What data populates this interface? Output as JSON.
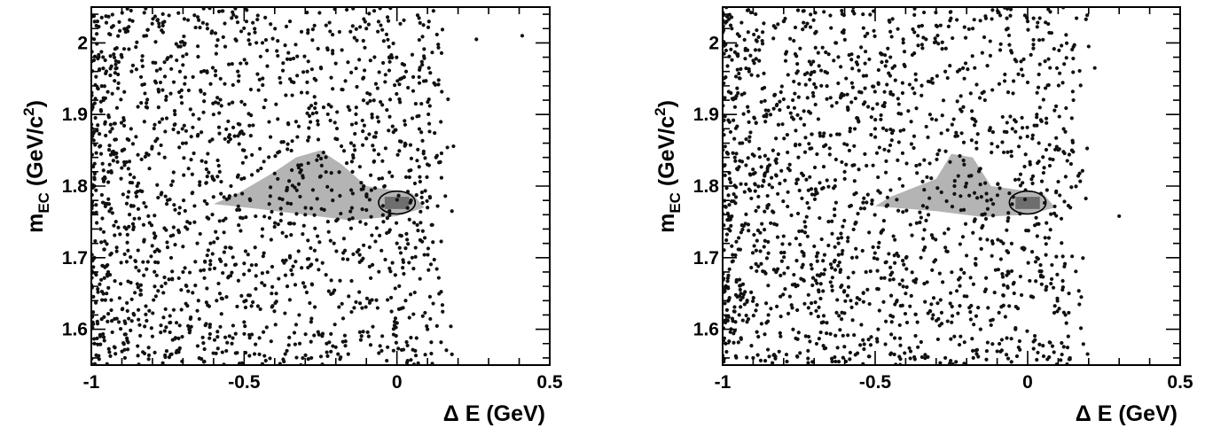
{
  "chart_data": [
    {
      "type": "scatter",
      "xlabel": "Δ E (GeV)",
      "ylabel": "m_EC (GeV/c^2)",
      "xlim": [
        -1,
        0.5
      ],
      "ylim": [
        1.55,
        2.05
      ],
      "x_tick_labels": [
        "-1",
        "-0.5",
        "0",
        "0.5"
      ],
      "y_tick_labels": [
        "1.6",
        "1.7",
        "1.8",
        "1.9",
        "2"
      ],
      "grid": false,
      "marker_color": "#111111",
      "band_color_light": "#b4b4b4",
      "band_color_dark": "#6e6e6e",
      "signal_ellipse": {
        "center": [
          0.0,
          1.777
        ],
        "semi_axes": [
          0.06,
          0.016
        ]
      },
      "points": [
        [
          -0.98,
          2.03
        ],
        [
          -0.9,
          1.98
        ],
        [
          -0.82,
          2.01
        ],
        [
          -0.71,
          1.96
        ],
        [
          -0.62,
          2.02
        ],
        [
          -0.55,
          1.97
        ],
        [
          -0.44,
          2.0
        ],
        [
          -0.35,
          2.03
        ],
        [
          -0.27,
          1.95
        ],
        [
          -0.18,
          1.99
        ],
        [
          -0.1,
          2.02
        ],
        [
          -0.02,
          1.98
        ],
        [
          0.03,
          1.96
        ],
        [
          0.26,
          2.005
        ],
        [
          0.41,
          2.01
        ],
        [
          -0.96,
          1.92
        ],
        [
          -0.87,
          1.88
        ],
        [
          -0.78,
          1.91
        ],
        [
          -0.69,
          1.86
        ],
        [
          -0.6,
          1.9
        ],
        [
          -0.52,
          1.87
        ],
        [
          -0.43,
          1.92
        ],
        [
          -0.33,
          1.89
        ],
        [
          -0.24,
          1.91
        ],
        [
          -0.15,
          1.86
        ],
        [
          -0.06,
          1.89
        ],
        [
          0.08,
          1.915
        ],
        [
          -0.94,
          1.83
        ],
        [
          -0.85,
          1.8
        ],
        [
          -0.76,
          1.84
        ],
        [
          -0.67,
          1.79
        ],
        [
          -0.58,
          1.82
        ],
        [
          -0.48,
          1.78
        ],
        [
          -0.39,
          1.81
        ],
        [
          -0.3,
          1.76
        ],
        [
          -0.21,
          1.78
        ],
        [
          -0.12,
          1.75
        ],
        [
          -0.04,
          1.8
        ],
        [
          0.1,
          1.77
        ],
        [
          0.18,
          1.765
        ],
        [
          -0.97,
          1.74
        ],
        [
          -0.88,
          1.71
        ],
        [
          -0.79,
          1.73
        ],
        [
          -0.7,
          1.68
        ],
        [
          -0.61,
          1.72
        ],
        [
          -0.53,
          1.69
        ],
        [
          -0.44,
          1.74
        ],
        [
          -0.35,
          1.7
        ],
        [
          -0.26,
          1.73
        ],
        [
          -0.17,
          1.71
        ],
        [
          -0.08,
          1.69
        ],
        [
          0.0,
          1.72
        ],
        [
          -0.95,
          1.65
        ],
        [
          -0.86,
          1.62
        ],
        [
          -0.77,
          1.66
        ],
        [
          -0.68,
          1.6
        ],
        [
          -0.59,
          1.64
        ],
        [
          -0.5,
          1.61
        ],
        [
          -0.41,
          1.65
        ],
        [
          -0.32,
          1.62
        ],
        [
          -0.23,
          1.58
        ],
        [
          -0.14,
          1.63
        ],
        [
          -0.05,
          1.57
        ],
        [
          0.02,
          1.63
        ],
        [
          0.1,
          1.6
        ],
        [
          -0.99,
          1.58
        ],
        [
          -0.89,
          1.56
        ],
        [
          -0.8,
          1.59
        ],
        [
          -0.72,
          1.57
        ],
        [
          -0.63,
          1.555
        ],
        [
          -0.54,
          1.58
        ],
        [
          -0.45,
          1.565
        ],
        [
          -0.36,
          1.57
        ],
        [
          -0.28,
          1.56
        ],
        [
          -0.2,
          1.575
        ],
        [
          0.06,
          1.57
        ],
        [
          0.18,
          1.565
        ]
      ]
    },
    {
      "type": "scatter",
      "xlabel": "Δ E (GeV)",
      "ylabel": "m_EC (GeV/c^2)",
      "xlim": [
        -1,
        0.5
      ],
      "ylim": [
        1.55,
        2.05
      ],
      "x_tick_labels": [
        "-1",
        "-0.5",
        "0",
        "0.5"
      ],
      "y_tick_labels": [
        "1.6",
        "1.7",
        "1.8",
        "1.9",
        "2"
      ],
      "grid": false,
      "marker_color": "#111111",
      "band_color_light": "#b4b4b4",
      "band_color_dark": "#6e6e6e",
      "signal_ellipse": {
        "center": [
          0.0,
          1.777
        ],
        "semi_axes": [
          0.06,
          0.016
        ]
      },
      "points": [
        [
          -0.97,
          2.02
        ],
        [
          -0.88,
          1.99
        ],
        [
          -0.8,
          2.03
        ],
        [
          -0.71,
          1.97
        ],
        [
          -0.63,
          2.0
        ],
        [
          -0.54,
          2.04
        ],
        [
          -0.45,
          1.98
        ],
        [
          -0.36,
          2.01
        ],
        [
          -0.27,
          1.96
        ],
        [
          -0.18,
          2.02
        ],
        [
          -0.09,
          1.99
        ],
        [
          0.0,
          2.03
        ],
        [
          0.04,
          1.97
        ],
        [
          0.2,
          1.995
        ],
        [
          0.22,
          1.965
        ],
        [
          -0.95,
          1.93
        ],
        [
          -0.86,
          1.89
        ],
        [
          -0.77,
          1.92
        ],
        [
          -0.68,
          1.87
        ],
        [
          -0.59,
          1.91
        ],
        [
          -0.5,
          1.88
        ],
        [
          -0.41,
          1.93
        ],
        [
          -0.32,
          1.9
        ],
        [
          -0.23,
          1.87
        ],
        [
          -0.14,
          1.92
        ],
        [
          -0.05,
          1.88
        ],
        [
          0.03,
          1.9
        ],
        [
          0.15,
          1.92
        ],
        [
          -0.96,
          1.84
        ],
        [
          -0.87,
          1.8
        ],
        [
          -0.78,
          1.83
        ],
        [
          -0.69,
          1.79
        ],
        [
          -0.6,
          1.82
        ],
        [
          -0.51,
          1.78
        ],
        [
          -0.42,
          1.81
        ],
        [
          -0.33,
          1.77
        ],
        [
          -0.24,
          1.8
        ],
        [
          -0.15,
          1.76
        ],
        [
          -0.06,
          1.79
        ],
        [
          0.14,
          1.77
        ],
        [
          -0.98,
          1.74
        ],
        [
          -0.89,
          1.71
        ],
        [
          -0.8,
          1.73
        ],
        [
          -0.71,
          1.69
        ],
        [
          -0.62,
          1.72
        ],
        [
          -0.53,
          1.68
        ],
        [
          -0.44,
          1.73
        ],
        [
          -0.35,
          1.7
        ],
        [
          -0.26,
          1.74
        ],
        [
          -0.17,
          1.69
        ],
        [
          -0.08,
          1.72
        ],
        [
          0.03,
          1.7
        ],
        [
          -0.94,
          1.65
        ],
        [
          -0.85,
          1.62
        ],
        [
          -0.76,
          1.66
        ],
        [
          -0.67,
          1.61
        ],
        [
          -0.58,
          1.64
        ],
        [
          -0.49,
          1.6
        ],
        [
          -0.4,
          1.65
        ],
        [
          -0.31,
          1.62
        ],
        [
          -0.22,
          1.59
        ],
        [
          -0.13,
          1.63
        ],
        [
          -0.04,
          1.6
        ],
        [
          0.06,
          1.655
        ],
        [
          -0.99,
          1.58
        ],
        [
          -0.9,
          1.56
        ],
        [
          -0.81,
          1.59
        ],
        [
          -0.72,
          1.57
        ],
        [
          -0.63,
          1.555
        ],
        [
          -0.54,
          1.585
        ],
        [
          -0.45,
          1.565
        ],
        [
          -0.36,
          1.575
        ],
        [
          -0.27,
          1.56
        ],
        [
          -0.18,
          1.57
        ],
        [
          0.3,
          1.758
        ]
      ]
    }
  ]
}
